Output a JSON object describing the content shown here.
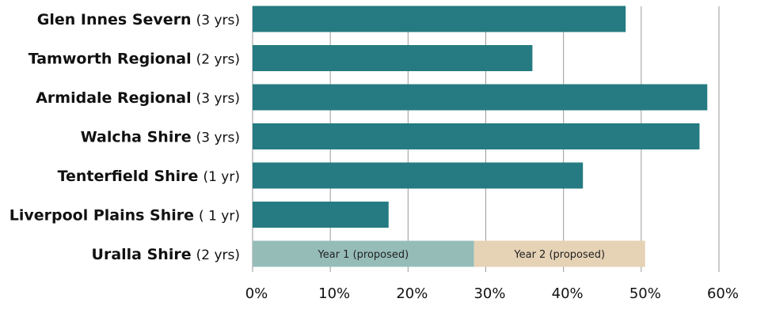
{
  "chart_data": {
    "type": "bar",
    "orientation": "horizontal",
    "categories": [
      {
        "name": "Glen Innes Severn",
        "note": "(3 yrs)"
      },
      {
        "name": "Tamworth Regional",
        "note": "(2 yrs)"
      },
      {
        "name": "Armidale Regional",
        "note": "(3 yrs)"
      },
      {
        "name": "Walcha Shire",
        "note": "(3 yrs)"
      },
      {
        "name": "Tenterfield Shire",
        "note": "(1 yr)"
      },
      {
        "name": "Liverpool Plains Shire",
        "note": "( 1 yr)"
      },
      {
        "name": "Uralla Shire",
        "note": "(2 yrs)"
      }
    ],
    "values": [
      48,
      36,
      58.5,
      57.5,
      42.5,
      17.5,
      null
    ],
    "stacked_bar": {
      "category": "Uralla Shire",
      "segments": [
        {
          "label": "Year 1 (proposed)",
          "value": 28.5,
          "color": "#96bcb8"
        },
        {
          "label": "Year 2 (proposed)",
          "value": 22,
          "color": "#e6d2b5"
        }
      ]
    },
    "xlim": [
      0,
      60
    ],
    "xticks": [
      0,
      10,
      20,
      30,
      40,
      50,
      60
    ],
    "xtick_labels": [
      "0%",
      "10%",
      "20%",
      "30%",
      "40%",
      "50%",
      "60%"
    ],
    "grid": true,
    "bar_color": "#257b81",
    "grid_color": "#9a9a9a",
    "title": "",
    "xlabel": "",
    "ylabel": ""
  }
}
